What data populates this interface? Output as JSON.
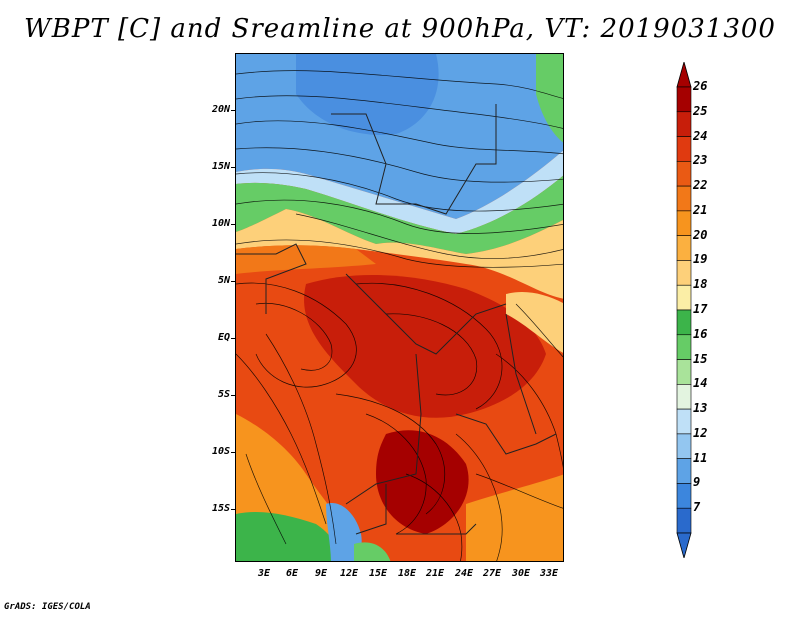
{
  "title": "WBPT [C] and Sreamline at 900hPa, VT: 2019031300",
  "footer": "GrADS: IGES/COLA",
  "map": {
    "lat_labels": [
      "20N",
      "15N",
      "10N",
      "5N",
      "EQ",
      "5S",
      "10S",
      "15S"
    ],
    "lon_labels": [
      "3E",
      "6E",
      "9E",
      "12E",
      "15E",
      "18E",
      "21E",
      "24E",
      "27E",
      "30E",
      "33E"
    ],
    "lat_range": [
      -19.5,
      25
    ],
    "lon_range": [
      0,
      34.5
    ]
  },
  "colorbar": {
    "labels": [
      "26",
      "25",
      "24",
      "23",
      "22",
      "21",
      "20",
      "19",
      "18",
      "17",
      "16",
      "15",
      "14",
      "13",
      "12",
      "11",
      "9",
      "7"
    ],
    "colors": [
      "#a50000",
      "#c81e0a",
      "#e03a10",
      "#ea5a14",
      "#f27818",
      "#f7941e",
      "#fbb040",
      "#fdd07a",
      "#fbeea6",
      "#3cb44a",
      "#66cc66",
      "#a9e39a",
      "#e3f4e0",
      "#bfe0f7",
      "#93c6f0",
      "#5ea3e6",
      "#3c86dd",
      "#2a6acc"
    ],
    "top_arrow_color": "#a50000",
    "bottom_arrow_color": "#2a6acc"
  }
}
